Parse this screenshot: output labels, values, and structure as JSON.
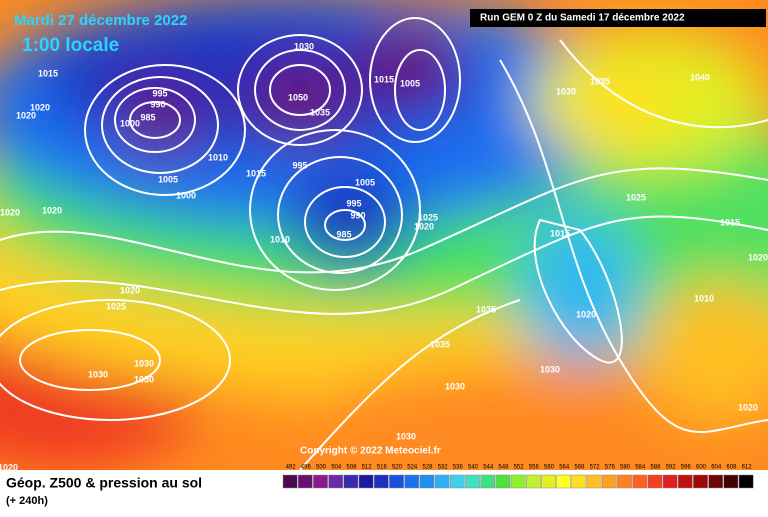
{
  "header": {
    "title": "Mardi 27 décembre 2022",
    "time": "1:00 locale",
    "run": "Run GEM 0 Z du Samedi 17 décembre 2022"
  },
  "copyright": "Copyright © 2022 Meteociel.fr",
  "footer": {
    "title": "Géop. Z500 & pression au sol",
    "lead": "(+ 240h)"
  },
  "legend": {
    "values": [
      492,
      496,
      500,
      504,
      508,
      512,
      516,
      520,
      524,
      528,
      532,
      536,
      540,
      544,
      548,
      552,
      556,
      560,
      564,
      568,
      572,
      576,
      580,
      584,
      588,
      592,
      596,
      600,
      604,
      608,
      612
    ],
    "colors": [
      "#4b0a4f",
      "#6a1070",
      "#8a1a8e",
      "#6a2aa8",
      "#3a2ab0",
      "#1a1aa0",
      "#1a30c0",
      "#1a50e0",
      "#1a70f0",
      "#2090f0",
      "#30b0f0",
      "#40d0e8",
      "#40e0c0",
      "#40e080",
      "#50e040",
      "#90f030",
      "#c0f030",
      "#e0f020",
      "#ffff20",
      "#ffe020",
      "#ffc020",
      "#ffa020",
      "#ff8020",
      "#ff6020",
      "#f04020",
      "#e02020",
      "#c01010",
      "#a00808",
      "#700404",
      "#400202",
      "#000000"
    ]
  },
  "pressure_labels": [
    1015,
    1020,
    1020,
    995,
    990,
    985,
    1000,
    1005,
    1000,
    1010,
    1015,
    1020,
    1020,
    1010,
    995,
    1005,
    995,
    990,
    985,
    1025,
    1020,
    1035,
    1050,
    1030,
    1015,
    1005,
    1030,
    1035,
    1040,
    1025,
    1015,
    1015,
    1020,
    1020,
    1010,
    1020,
    1025,
    1030,
    1030,
    1030,
    1035,
    1035,
    1030,
    1030,
    1030,
    1020,
    1020
  ]
}
